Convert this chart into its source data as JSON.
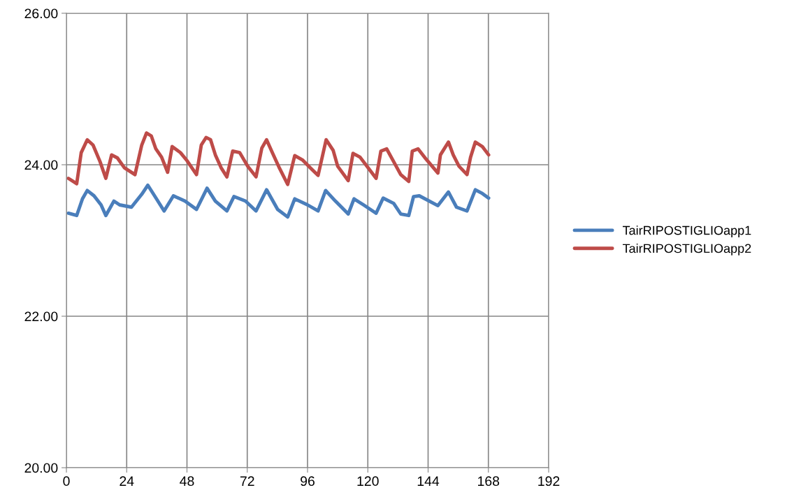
{
  "chart_data": {
    "type": "line",
    "xlim": [
      0,
      192
    ],
    "xticks": [
      0,
      24,
      48,
      72,
      96,
      120,
      144,
      168,
      192
    ],
    "ylim": [
      20,
      26
    ],
    "yticks": [
      {
        "value": 20,
        "label": "20.00"
      },
      {
        "value": 22,
        "label": "22.00"
      },
      {
        "value": 24,
        "label": "24.00"
      },
      {
        "value": 26,
        "label": "26.00"
      }
    ],
    "grid": true,
    "legend": "right",
    "marker": "none",
    "line_style": "solid",
    "series": [
      {
        "name": "TairRIPOSTIGLIOapp1",
        "color": "#4a7ebb",
        "x": [
          0.8,
          4.1,
          6.4,
          8.3,
          11.0,
          13.8,
          15.7,
          18.9,
          21.2,
          25.9,
          30.0,
          32.4,
          35.1,
          38.9,
          42.6,
          47.2,
          51.8,
          56.0,
          59.3,
          63.9,
          66.7,
          71.3,
          75.5,
          79.7,
          84.1,
          88.1,
          90.9,
          96.0,
          100.2,
          103.2,
          107.1,
          112.2,
          114.5,
          118.3,
          123.3,
          126.1,
          130.3,
          133.1,
          136.3,
          138.2,
          140.5,
          147.9,
          152.1,
          155.3,
          159.5,
          162.8,
          165.6,
          168.1
        ],
        "values": [
          23.36,
          23.33,
          23.55,
          23.66,
          23.59,
          23.47,
          23.33,
          23.52,
          23.47,
          23.44,
          23.61,
          23.73,
          23.59,
          23.39,
          23.59,
          23.52,
          23.41,
          23.69,
          23.52,
          23.39,
          23.58,
          23.52,
          23.39,
          23.67,
          23.41,
          23.31,
          23.55,
          23.47,
          23.39,
          23.66,
          23.52,
          23.35,
          23.55,
          23.47,
          23.36,
          23.56,
          23.49,
          23.35,
          23.33,
          23.58,
          23.59,
          23.46,
          23.64,
          23.44,
          23.39,
          23.67,
          23.62,
          23.56
        ]
      },
      {
        "name": "TairRIPOSTIGLIOapp2",
        "color": "#be4b48",
        "x": [
          0.8,
          4.1,
          5.9,
          8.3,
          10.6,
          13.4,
          15.7,
          18.0,
          20.3,
          23.1,
          27.3,
          30.0,
          31.9,
          33.8,
          35.6,
          37.9,
          40.3,
          42.1,
          45.4,
          48.1,
          51.8,
          53.7,
          55.6,
          57.4,
          59.3,
          61.6,
          63.9,
          66.2,
          69.0,
          72.2,
          75.5,
          77.8,
          79.7,
          82.0,
          84.9,
          88.1,
          90.9,
          94.1,
          97.4,
          100.2,
          103.4,
          106.2,
          108.0,
          112.2,
          114.1,
          116.9,
          120.1,
          123.3,
          125.2,
          127.5,
          130.3,
          133.1,
          136.3,
          137.7,
          140.0,
          143.3,
          147.9,
          148.9,
          152.1,
          154.0,
          156.3,
          159.5,
          160.9,
          162.8,
          165.6,
          168.1
        ],
        "values": [
          23.82,
          23.75,
          24.16,
          24.33,
          24.26,
          24.04,
          23.82,
          24.13,
          24.09,
          23.96,
          23.87,
          24.26,
          24.42,
          24.38,
          24.21,
          24.1,
          23.9,
          24.24,
          24.16,
          24.05,
          23.87,
          24.26,
          24.36,
          24.33,
          24.13,
          23.96,
          23.84,
          24.18,
          24.16,
          23.98,
          23.84,
          24.22,
          24.33,
          24.16,
          23.95,
          23.74,
          24.12,
          24.06,
          23.95,
          23.86,
          24.33,
          24.19,
          23.98,
          23.79,
          24.15,
          24.1,
          23.96,
          23.82,
          24.18,
          24.21,
          24.04,
          23.87,
          23.78,
          24.18,
          24.21,
          24.07,
          23.89,
          24.13,
          24.3,
          24.13,
          23.98,
          23.87,
          24.1,
          24.3,
          24.24,
          24.13
        ]
      }
    ]
  }
}
